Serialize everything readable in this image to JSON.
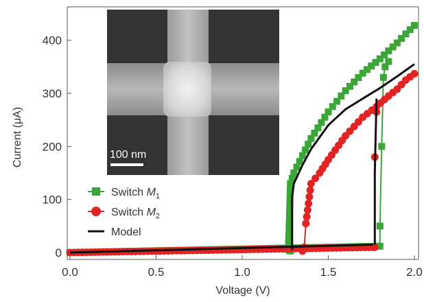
{
  "chart_data": {
    "type": "line",
    "xlabel": "Voltage (V)",
    "ylabel": "Current (μA)",
    "xlim": [
      0.0,
      2.0
    ],
    "ylim": [
      -5,
      450
    ],
    "x_ticks": [
      "0.0",
      "0.5",
      "1.0",
      "1.5",
      "2.0"
    ],
    "y_ticks": [
      "0",
      "100",
      "200",
      "300",
      "400"
    ],
    "grid": false,
    "legend_position": "lower-left",
    "inset": {
      "scale_bar_label": "100 nm"
    },
    "series": [
      {
        "name_prefix": "Switch ",
        "name_var": "M",
        "name_sub": "1",
        "color": "#3aa637",
        "marker": "square",
        "low_branch": {
          "x": [
            0.0,
            1.78
          ],
          "y": [
            0,
            12
          ]
        },
        "switch_up": {
          "x": [
            1.8,
            1.8,
            1.81,
            1.82,
            1.83,
            1.85
          ],
          "y": [
            12,
            50,
            200,
            330,
            350,
            360
          ]
        },
        "high_branch": {
          "x": [
            1.27,
            1.28,
            1.3,
            1.4,
            1.5,
            1.6,
            1.7,
            1.8,
            1.85,
            1.9,
            1.95,
            2.0
          ],
          "y": [
            20,
            130,
            150,
            215,
            265,
            305,
            338,
            365,
            380,
            395,
            412,
            428
          ]
        },
        "switch_down": {
          "x": [
            1.27,
            1.27,
            1.28
          ],
          "y": [
            20,
            5,
            3
          ]
        }
      },
      {
        "name_prefix": "Switch ",
        "name_var": "M",
        "name_sub": "2",
        "color": "#e02424",
        "marker": "circle",
        "low_branch": {
          "x": [
            0.0,
            1.76
          ],
          "y": [
            0,
            10
          ]
        },
        "switch_up": {
          "x": [
            1.77,
            1.77,
            1.78
          ],
          "y": [
            10,
            180,
            265
          ]
        },
        "high_branch": {
          "x": [
            1.37,
            1.4,
            1.45,
            1.5,
            1.6,
            1.7,
            1.78,
            1.85,
            1.9,
            1.95,
            2.0
          ],
          "y": [
            55,
            130,
            150,
            175,
            220,
            255,
            275,
            295,
            308,
            325,
            337
          ]
        },
        "switch_down": {
          "x": [
            1.37,
            1.36,
            1.35
          ],
          "y": [
            55,
            10,
            3
          ]
        }
      },
      {
        "name": "Model",
        "color": "#111111",
        "marker": "none",
        "low_branch": {
          "x": [
            0.0,
            1.76
          ],
          "y": [
            0,
            15
          ]
        },
        "switch_up": {
          "x": [
            1.77,
            1.77,
            1.78
          ],
          "y": [
            15,
            150,
            290
          ]
        },
        "high_branch": {
          "x": [
            1.29,
            1.3,
            1.35,
            1.4,
            1.5,
            1.6,
            1.7,
            1.8,
            1.9,
            2.0
          ],
          "y": [
            105,
            130,
            165,
            195,
            240,
            270,
            290,
            310,
            332,
            355
          ]
        },
        "switch_down": {
          "x": [
            1.29,
            1.29
          ],
          "y": [
            105,
            5
          ]
        }
      }
    ]
  }
}
